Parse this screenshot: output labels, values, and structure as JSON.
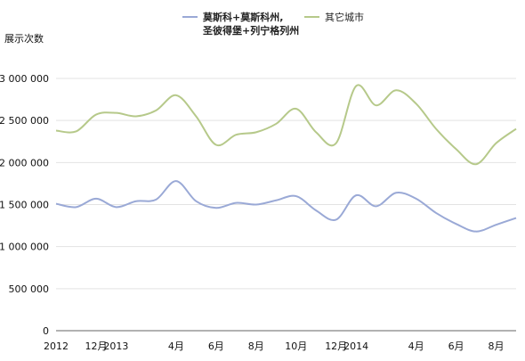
{
  "chart_data": {
    "type": "line",
    "ylabel": "展示次数",
    "ylim": [
      0,
      3000000
    ],
    "yticks": [
      0,
      500000,
      1000000,
      1500000,
      2000000,
      2500000,
      3000000
    ],
    "ytick_labels": [
      "0",
      "500 000",
      "1 000 000",
      "1 500 000",
      "2 000 000",
      "2 500 000",
      "3 000 000"
    ],
    "x_tick_labels": [
      "2012",
      "12月",
      "2013",
      "4月",
      "6月",
      "8月",
      "10月",
      "12月",
      "2014",
      "4月",
      "6月",
      "8月"
    ],
    "legend_position": "top",
    "grid": "horizontal",
    "x": [
      "2012-10",
      "2012-11",
      "2012-12",
      "2013-01",
      "2013-02",
      "2013-03",
      "2013-04",
      "2013-05",
      "2013-06",
      "2013-07",
      "2013-08",
      "2013-09",
      "2013-10",
      "2013-11",
      "2013-12",
      "2014-01",
      "2014-02",
      "2014-03",
      "2014-04",
      "2014-05",
      "2014-06",
      "2014-07",
      "2014-08",
      "2014-09"
    ],
    "series": [
      {
        "name_lines": [
          "莫斯科+莫斯科州,",
          "圣彼得堡+列宁格列州"
        ],
        "color": "#9aa9d6",
        "values": [
          1510000,
          1470000,
          1570000,
          1470000,
          1540000,
          1560000,
          1780000,
          1540000,
          1460000,
          1520000,
          1500000,
          1550000,
          1600000,
          1430000,
          1320000,
          1610000,
          1480000,
          1640000,
          1570000,
          1400000,
          1270000,
          1180000,
          1260000,
          1340000
        ]
      },
      {
        "name": "其它城市",
        "color": "#b6c98a",
        "values": [
          2380000,
          2370000,
          2570000,
          2590000,
          2550000,
          2620000,
          2800000,
          2550000,
          2210000,
          2330000,
          2360000,
          2460000,
          2640000,
          2360000,
          2230000,
          2910000,
          2680000,
          2860000,
          2700000,
          2400000,
          2160000,
          1980000,
          2230000,
          2400000
        ]
      }
    ]
  }
}
